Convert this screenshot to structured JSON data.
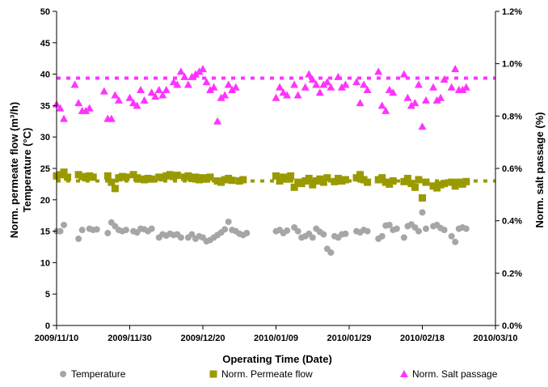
{
  "chart_data": {
    "type": "scatter",
    "title": "",
    "xlabel": "Operating Time (Date)",
    "ylabel_left_line1": "Norm. permeate flow (m³/h)",
    "ylabel_left_line2": "Temperature (°C)",
    "ylabel_right": "Norm. salt passage (%)",
    "x_ticks": [
      "2009/11/10",
      "2009/11/30",
      "2009/12/20",
      "2010/01/09",
      "2010/01/29",
      "2010/02/18",
      "2010/03/10"
    ],
    "x_range": [
      "2009/11/10",
      "2010/03/10"
    ],
    "y_left_ticks": [
      0,
      5,
      10,
      15,
      20,
      25,
      30,
      35,
      40,
      45,
      50
    ],
    "y_left_range": [
      0,
      50
    ],
    "y_right_ticks": [
      "0.0%",
      "0.2%",
      "0.4%",
      "0.6%",
      "0.8%",
      "1.0%",
      "1.2%"
    ],
    "y_right_range": [
      0,
      1.2
    ],
    "grid": false,
    "legend_position": "bottom",
    "reference_lines": [
      {
        "series": "Norm. Salt passage",
        "axis": "right",
        "value": 0.945,
        "style": "dashed",
        "color": "#ff33ff"
      },
      {
        "series": "Norm. Permeate flow",
        "axis": "left",
        "value": 23.0,
        "style": "dashed",
        "color": "#9a9a00"
      }
    ],
    "series": [
      {
        "name": "Temperature",
        "marker": "circle",
        "color": "#a6a6a6",
        "axis": "left",
        "points": [
          [
            "2009/11/10",
            15.0
          ],
          [
            "2009/11/11",
            15.0
          ],
          [
            "2009/11/12",
            16.0
          ],
          [
            "2009/11/16",
            13.8
          ],
          [
            "2009/11/17",
            15.2
          ],
          [
            "2009/11/19",
            15.4
          ],
          [
            "2009/11/20",
            15.2
          ],
          [
            "2009/11/21",
            15.3
          ],
          [
            "2009/11/24",
            14.7
          ],
          [
            "2009/11/25",
            16.4
          ],
          [
            "2009/11/26",
            15.8
          ],
          [
            "2009/11/27",
            15.2
          ],
          [
            "2009/11/28",
            15.0
          ],
          [
            "2009/11/29",
            15.2
          ],
          [
            "2009/12/01",
            15.0
          ],
          [
            "2009/12/02",
            14.8
          ],
          [
            "2009/12/03",
            15.4
          ],
          [
            "2009/12/04",
            15.3
          ],
          [
            "2009/12/05",
            15.0
          ],
          [
            "2009/12/06",
            15.4
          ],
          [
            "2009/12/08",
            14.0
          ],
          [
            "2009/12/09",
            14.5
          ],
          [
            "2009/12/10",
            14.3
          ],
          [
            "2009/12/11",
            14.6
          ],
          [
            "2009/12/12",
            14.4
          ],
          [
            "2009/12/13",
            14.5
          ],
          [
            "2009/12/14",
            14.0
          ],
          [
            "2009/12/16",
            14.0
          ],
          [
            "2009/12/17",
            14.5
          ],
          [
            "2009/12/18",
            13.8
          ],
          [
            "2009/12/19",
            14.2
          ],
          [
            "2009/12/20",
            14.0
          ],
          [
            "2009/12/21",
            13.4
          ],
          [
            "2009/12/22",
            13.6
          ],
          [
            "2009/12/23",
            14.0
          ],
          [
            "2009/12/24",
            14.4
          ],
          [
            "2009/12/25",
            14.8
          ],
          [
            "2009/12/26",
            15.3
          ],
          [
            "2009/12/27",
            16.5
          ],
          [
            "2009/12/28",
            15.2
          ],
          [
            "2009/12/29",
            15.0
          ],
          [
            "2009/12/30",
            14.6
          ],
          [
            "2009/12/31",
            14.4
          ],
          [
            "2010/01/01",
            14.7
          ],
          [
            "2010/01/09",
            15.0
          ],
          [
            "2010/01/10",
            15.2
          ],
          [
            "2010/01/11",
            14.7
          ],
          [
            "2010/01/12",
            15.1
          ],
          [
            "2010/01/14",
            15.6
          ],
          [
            "2010/01/15",
            15.0
          ],
          [
            "2010/01/16",
            14.0
          ],
          [
            "2010/01/17",
            14.2
          ],
          [
            "2010/01/18",
            14.6
          ],
          [
            "2010/01/19",
            14.0
          ],
          [
            "2010/01/20",
            15.4
          ],
          [
            "2010/01/21",
            14.9
          ],
          [
            "2010/01/22",
            14.5
          ],
          [
            "2010/01/23",
            12.2
          ],
          [
            "2010/01/24",
            11.6
          ],
          [
            "2010/01/25",
            14.2
          ],
          [
            "2010/01/26",
            14.0
          ],
          [
            "2010/01/27",
            14.5
          ],
          [
            "2010/01/28",
            14.6
          ],
          [
            "2010/01/31",
            15.0
          ],
          [
            "2010/02/01",
            14.8
          ],
          [
            "2010/02/02",
            15.2
          ],
          [
            "2010/02/03",
            15.0
          ],
          [
            "2010/02/06",
            13.8
          ],
          [
            "2010/02/07",
            14.2
          ],
          [
            "2010/02/08",
            15.9
          ],
          [
            "2010/02/09",
            16.0
          ],
          [
            "2010/02/10",
            15.2
          ],
          [
            "2010/02/11",
            15.4
          ],
          [
            "2010/02/13",
            14.0
          ],
          [
            "2010/02/14",
            15.8
          ],
          [
            "2010/02/15",
            16.1
          ],
          [
            "2010/02/16",
            15.6
          ],
          [
            "2010/02/17",
            15.0
          ],
          [
            "2010/02/18",
            18.0
          ],
          [
            "2010/02/19",
            15.4
          ],
          [
            "2010/02/21",
            15.8
          ],
          [
            "2010/02/22",
            16.0
          ],
          [
            "2010/02/23",
            15.5
          ],
          [
            "2010/02/24",
            15.2
          ],
          [
            "2010/02/26",
            14.2
          ],
          [
            "2010/02/27",
            13.3
          ],
          [
            "2010/02/28",
            15.4
          ],
          [
            "2010/03/01",
            15.6
          ],
          [
            "2010/03/02",
            15.4
          ]
        ]
      },
      {
        "name": "Norm. Permeate flow",
        "marker": "square",
        "color": "#9a9a00",
        "axis": "left",
        "points": [
          [
            "2009/11/10",
            23.8
          ],
          [
            "2009/11/11",
            24.0
          ],
          [
            "2009/11/12",
            24.4
          ],
          [
            "2009/11/13",
            23.6
          ],
          [
            "2009/11/16",
            24.0
          ],
          [
            "2009/11/17",
            23.7
          ],
          [
            "2009/11/18",
            23.5
          ],
          [
            "2009/11/19",
            23.8
          ],
          [
            "2009/11/20",
            23.6
          ],
          [
            "2009/11/24",
            23.8
          ],
          [
            "2009/11/25",
            22.8
          ],
          [
            "2009/11/26",
            21.8
          ],
          [
            "2009/11/27",
            23.5
          ],
          [
            "2009/11/28",
            23.7
          ],
          [
            "2009/11/29",
            23.6
          ],
          [
            "2009/12/01",
            24.0
          ],
          [
            "2009/12/02",
            23.5
          ],
          [
            "2009/12/03",
            23.3
          ],
          [
            "2009/12/04",
            23.2
          ],
          [
            "2009/12/05",
            23.4
          ],
          [
            "2009/12/06",
            23.3
          ],
          [
            "2009/12/08",
            23.6
          ],
          [
            "2009/12/09",
            23.5
          ],
          [
            "2009/12/10",
            23.8
          ],
          [
            "2009/12/11",
            24.0
          ],
          [
            "2009/12/12",
            23.7
          ],
          [
            "2009/12/13",
            23.9
          ],
          [
            "2009/12/15",
            23.6
          ],
          [
            "2009/12/16",
            23.8
          ],
          [
            "2009/12/17",
            23.4
          ],
          [
            "2009/12/18",
            23.6
          ],
          [
            "2009/12/19",
            23.2
          ],
          [
            "2009/12/20",
            23.5
          ],
          [
            "2009/12/21",
            23.3
          ],
          [
            "2009/12/22",
            23.6
          ],
          [
            "2009/12/24",
            23.0
          ],
          [
            "2009/12/25",
            22.8
          ],
          [
            "2009/12/26",
            23.2
          ],
          [
            "2009/12/27",
            23.4
          ],
          [
            "2009/12/28",
            23.1
          ],
          [
            "2009/12/30",
            23.0
          ],
          [
            "2009/12/31",
            23.2
          ],
          [
            "2010/01/09",
            23.8
          ],
          [
            "2010/01/10",
            23.0
          ],
          [
            "2010/01/11",
            23.6
          ],
          [
            "2010/01/12",
            23.3
          ],
          [
            "2010/01/13",
            23.8
          ],
          [
            "2010/01/14",
            22.0
          ],
          [
            "2010/01/15",
            22.8
          ],
          [
            "2010/01/16",
            22.6
          ],
          [
            "2010/01/17",
            23.0
          ],
          [
            "2010/01/18",
            23.4
          ],
          [
            "2010/01/19",
            22.4
          ],
          [
            "2010/01/20",
            23.0
          ],
          [
            "2010/01/21",
            23.3
          ],
          [
            "2010/01/22",
            22.8
          ],
          [
            "2010/01/23",
            23.5
          ],
          [
            "2010/01/25",
            22.9
          ],
          [
            "2010/01/26",
            23.4
          ],
          [
            "2010/01/27",
            23.0
          ],
          [
            "2010/01/28",
            23.2
          ],
          [
            "2010/01/31",
            23.5
          ],
          [
            "2010/02/01",
            24.0
          ],
          [
            "2010/02/02",
            23.2
          ],
          [
            "2010/02/03",
            22.8
          ],
          [
            "2010/02/06",
            23.2
          ],
          [
            "2010/02/07",
            23.5
          ],
          [
            "2010/02/08",
            22.8
          ],
          [
            "2010/02/09",
            22.5
          ],
          [
            "2010/02/10",
            23.0
          ],
          [
            "2010/02/13",
            22.9
          ],
          [
            "2010/02/14",
            23.4
          ],
          [
            "2010/02/15",
            22.6
          ],
          [
            "2010/02/16",
            22.0
          ],
          [
            "2010/02/17",
            23.2
          ],
          [
            "2010/02/18",
            20.3
          ],
          [
            "2010/02/19",
            22.8
          ],
          [
            "2010/02/21",
            22.2
          ],
          [
            "2010/02/22",
            21.9
          ],
          [
            "2010/02/23",
            22.4
          ],
          [
            "2010/02/24",
            22.6
          ],
          [
            "2010/02/26",
            22.8
          ],
          [
            "2010/02/27",
            22.2
          ],
          [
            "2010/02/28",
            22.8
          ],
          [
            "2010/03/01",
            22.5
          ],
          [
            "2010/03/02",
            22.9
          ]
        ]
      },
      {
        "name": "Norm. Salt passage",
        "marker": "triangle",
        "color": "#ff33ff",
        "axis": "right",
        "points": [
          [
            "2009/11/10",
            0.845
          ],
          [
            "2009/11/11",
            0.83
          ],
          [
            "2009/11/12",
            0.79
          ],
          [
            "2009/11/15",
            0.92
          ],
          [
            "2009/11/16",
            0.85
          ],
          [
            "2009/11/17",
            0.82
          ],
          [
            "2009/11/18",
            0.82
          ],
          [
            "2009/11/19",
            0.83
          ],
          [
            "2009/11/23",
            0.895
          ],
          [
            "2009/11/24",
            0.79
          ],
          [
            "2009/11/25",
            0.79
          ],
          [
            "2009/11/26",
            0.88
          ],
          [
            "2009/11/27",
            0.86
          ],
          [
            "2009/11/30",
            0.87
          ],
          [
            "2009/12/01",
            0.85
          ],
          [
            "2009/12/02",
            0.84
          ],
          [
            "2009/12/03",
            0.9
          ],
          [
            "2009/12/04",
            0.86
          ],
          [
            "2009/12/06",
            0.89
          ],
          [
            "2009/12/07",
            0.875
          ],
          [
            "2009/12/08",
            0.9
          ],
          [
            "2009/12/09",
            0.88
          ],
          [
            "2009/12/10",
            0.9
          ],
          [
            "2009/12/12",
            0.93
          ],
          [
            "2009/12/13",
            0.92
          ],
          [
            "2009/12/14",
            0.97
          ],
          [
            "2009/12/15",
            0.95
          ],
          [
            "2009/12/16",
            0.92
          ],
          [
            "2009/12/17",
            0.95
          ],
          [
            "2009/12/18",
            0.96
          ],
          [
            "2009/12/19",
            0.97
          ],
          [
            "2009/12/20",
            0.98
          ],
          [
            "2009/12/21",
            0.93
          ],
          [
            "2009/12/22",
            0.9
          ],
          [
            "2009/12/23",
            0.91
          ],
          [
            "2009/12/24",
            0.78
          ],
          [
            "2009/12/25",
            0.87
          ],
          [
            "2009/12/26",
            0.88
          ],
          [
            "2009/12/27",
            0.92
          ],
          [
            "2009/12/28",
            0.9
          ],
          [
            "2009/12/29",
            0.91
          ],
          [
            "2010/01/09",
            0.87
          ],
          [
            "2010/01/10",
            0.91
          ],
          [
            "2010/01/11",
            0.89
          ],
          [
            "2010/01/12",
            0.88
          ],
          [
            "2010/01/14",
            0.92
          ],
          [
            "2010/01/15",
            0.88
          ],
          [
            "2010/01/17",
            0.91
          ],
          [
            "2010/01/18",
            0.96
          ],
          [
            "2010/01/19",
            0.94
          ],
          [
            "2010/01/20",
            0.92
          ],
          [
            "2010/01/21",
            0.89
          ],
          [
            "2010/01/22",
            0.92
          ],
          [
            "2010/01/23",
            0.93
          ],
          [
            "2010/01/24",
            0.91
          ],
          [
            "2010/01/26",
            0.95
          ],
          [
            "2010/01/27",
            0.91
          ],
          [
            "2010/01/28",
            0.92
          ],
          [
            "2010/01/31",
            0.93
          ],
          [
            "2010/02/01",
            0.85
          ],
          [
            "2010/02/02",
            0.92
          ],
          [
            "2010/02/03",
            0.9
          ],
          [
            "2010/02/06",
            0.97
          ],
          [
            "2010/02/07",
            0.84
          ],
          [
            "2010/02/08",
            0.82
          ],
          [
            "2010/02/09",
            0.9
          ],
          [
            "2010/02/10",
            0.89
          ],
          [
            "2010/02/13",
            0.96
          ],
          [
            "2010/02/14",
            0.87
          ],
          [
            "2010/02/15",
            0.84
          ],
          [
            "2010/02/16",
            0.85
          ],
          [
            "2010/02/17",
            0.92
          ],
          [
            "2010/02/18",
            0.76
          ],
          [
            "2010/02/19",
            0.86
          ],
          [
            "2010/02/21",
            0.91
          ],
          [
            "2010/02/22",
            0.86
          ],
          [
            "2010/02/23",
            0.87
          ],
          [
            "2010/02/24",
            0.94
          ],
          [
            "2010/02/26",
            0.91
          ],
          [
            "2010/02/27",
            0.98
          ],
          [
            "2010/02/28",
            0.9
          ],
          [
            "2010/03/01",
            0.9
          ],
          [
            "2010/03/02",
            0.91
          ]
        ]
      }
    ]
  }
}
